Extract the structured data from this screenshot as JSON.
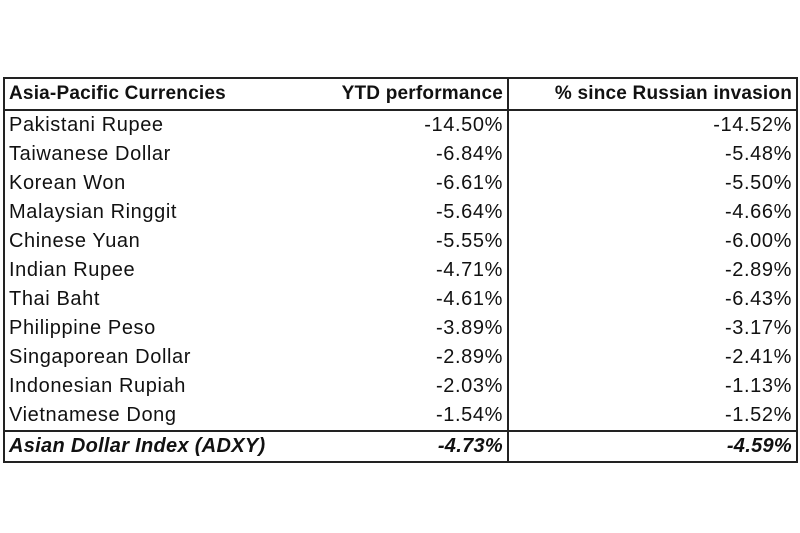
{
  "chart_data": {
    "type": "table",
    "headers": [
      "Asia-Pacific Currencies",
      "YTD performance",
      "% since Russian invasion"
    ],
    "rows": [
      {
        "currency": "Pakistani Rupee",
        "ytd": "-14.50%",
        "since_invasion": "-14.52%"
      },
      {
        "currency": "Taiwanese Dollar",
        "ytd": "-6.84%",
        "since_invasion": "-5.48%"
      },
      {
        "currency": "Korean Won",
        "ytd": "-6.61%",
        "since_invasion": "-5.50%"
      },
      {
        "currency": "Malaysian Ringgit",
        "ytd": "-5.64%",
        "since_invasion": "-4.66%"
      },
      {
        "currency": "Chinese Yuan",
        "ytd": "-5.55%",
        "since_invasion": "-6.00%"
      },
      {
        "currency": "Indian Rupee",
        "ytd": "-4.71%",
        "since_invasion": "-2.89%"
      },
      {
        "currency": "Thai Baht",
        "ytd": "-4.61%",
        "since_invasion": "-6.43%"
      },
      {
        "currency": "Philippine Peso",
        "ytd": "-3.89%",
        "since_invasion": "-3.17%"
      },
      {
        "currency": "Singaporean Dollar",
        "ytd": "-2.89%",
        "since_invasion": "-2.41%"
      },
      {
        "currency": "Indonesian Rupiah",
        "ytd": "-2.03%",
        "since_invasion": "-1.13%"
      },
      {
        "currency": "Vietnamese Dong",
        "ytd": "-1.54%",
        "since_invasion": "-1.52%"
      }
    ],
    "summary": {
      "currency": "Asian Dollar Index (ADXY)",
      "ytd": "-4.73%",
      "since_invasion": "-4.59%"
    }
  }
}
